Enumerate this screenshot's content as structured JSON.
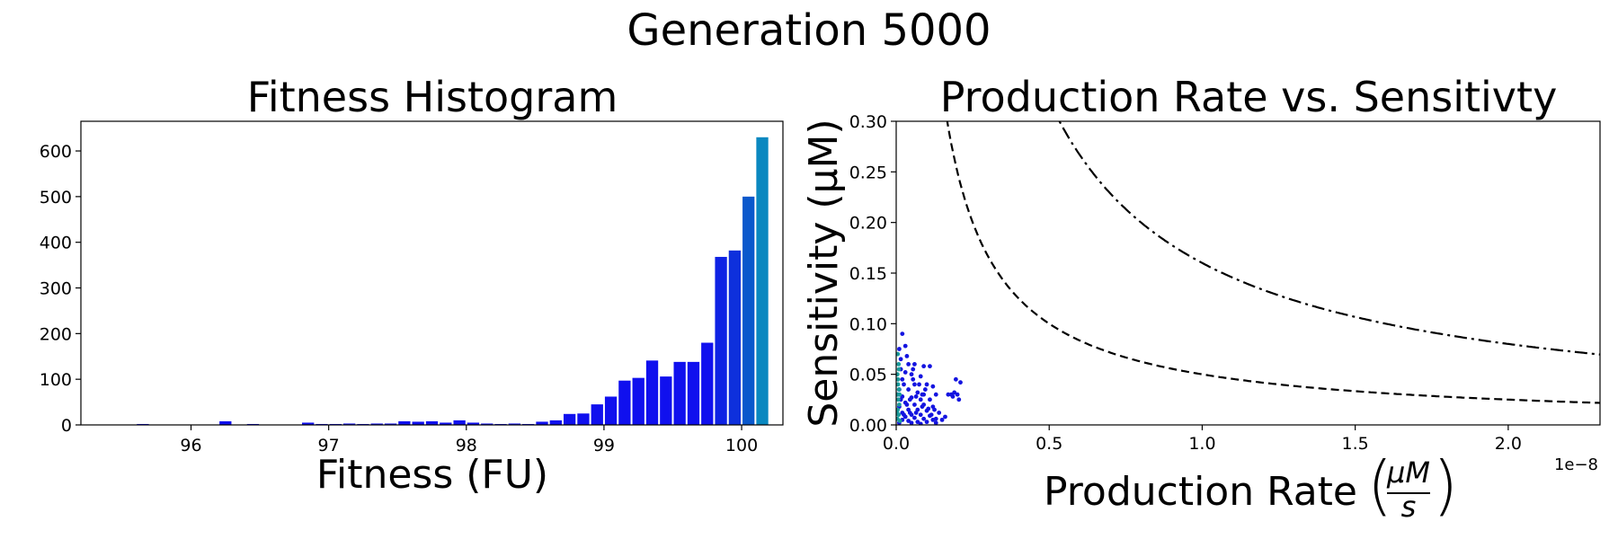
{
  "suptitle": "Generation 5000",
  "chart_data": [
    {
      "type": "bar",
      "title": "Fitness Histogram",
      "xlabel": "Fitness (FU)",
      "ylabel": "",
      "xlim": [
        95.2,
        100.3
      ],
      "ylim": [
        0,
        665
      ],
      "xticks": [
        96,
        97,
        98,
        99,
        100
      ],
      "yticks": [
        0,
        100,
        200,
        300,
        400,
        500,
        600
      ],
      "bin_width": 0.1,
      "bins": [
        {
          "x": 95.65,
          "count": 2,
          "color": "#1010ee"
        },
        {
          "x": 96.25,
          "count": 8,
          "color": "#1010ee"
        },
        {
          "x": 96.45,
          "count": 2,
          "color": "#1010ee"
        },
        {
          "x": 96.85,
          "count": 5,
          "color": "#1010ee"
        },
        {
          "x": 96.95,
          "count": 2,
          "color": "#1010ee"
        },
        {
          "x": 97.05,
          "count": 2,
          "color": "#1010ee"
        },
        {
          "x": 97.15,
          "count": 3,
          "color": "#1010ee"
        },
        {
          "x": 97.25,
          "count": 2,
          "color": "#1010ee"
        },
        {
          "x": 97.35,
          "count": 3,
          "color": "#1010ee"
        },
        {
          "x": 97.45,
          "count": 3,
          "color": "#1010ee"
        },
        {
          "x": 97.55,
          "count": 8,
          "color": "#1010ee"
        },
        {
          "x": 97.65,
          "count": 7,
          "color": "#1010ee"
        },
        {
          "x": 97.75,
          "count": 8,
          "color": "#1010ee"
        },
        {
          "x": 97.85,
          "count": 5,
          "color": "#1010ee"
        },
        {
          "x": 97.95,
          "count": 10,
          "color": "#1010ee"
        },
        {
          "x": 98.05,
          "count": 5,
          "color": "#1010ee"
        },
        {
          "x": 98.15,
          "count": 3,
          "color": "#1010ee"
        },
        {
          "x": 98.25,
          "count": 2,
          "color": "#1010ee"
        },
        {
          "x": 98.35,
          "count": 3,
          "color": "#1010ee"
        },
        {
          "x": 98.45,
          "count": 2,
          "color": "#1010ee"
        },
        {
          "x": 98.55,
          "count": 7,
          "color": "#1010ee"
        },
        {
          "x": 98.65,
          "count": 10,
          "color": "#1010ee"
        },
        {
          "x": 98.75,
          "count": 24,
          "color": "#1010ee"
        },
        {
          "x": 98.85,
          "count": 25,
          "color": "#1010ee"
        },
        {
          "x": 98.95,
          "count": 45,
          "color": "#1010ee"
        },
        {
          "x": 99.05,
          "count": 62,
          "color": "#1010ee"
        },
        {
          "x": 99.15,
          "count": 97,
          "color": "#1010ee"
        },
        {
          "x": 99.25,
          "count": 103,
          "color": "#1010ee"
        },
        {
          "x": 99.35,
          "count": 141,
          "color": "#1010ee"
        },
        {
          "x": 99.45,
          "count": 106,
          "color": "#1010ee"
        },
        {
          "x": 99.55,
          "count": 138,
          "color": "#1010ee"
        },
        {
          "x": 99.65,
          "count": 138,
          "color": "#1010ee"
        },
        {
          "x": 99.75,
          "count": 180,
          "color": "#1010ee"
        },
        {
          "x": 99.85,
          "count": 368,
          "color": "#0e22e4"
        },
        {
          "x": 99.95,
          "count": 382,
          "color": "#0e30dc"
        },
        {
          "x": 100.05,
          "count": 500,
          "color": "#0a58cc"
        },
        {
          "x": 100.15,
          "count": 630,
          "color": "#0a88c0"
        }
      ]
    },
    {
      "type": "scatter",
      "title": "Production Rate vs. Sensitivty",
      "xlabel": "Production Rate",
      "xlabel_unit_numerator": "μM",
      "xlabel_unit_denominator": "s",
      "ylabel": "Sensitivity (μM)",
      "x_offset_label": "1e−8",
      "xlim": [
        0,
        2.3
      ],
      "ylim": [
        0,
        0.3
      ],
      "xticks": [
        "0.0",
        "0.5",
        "1.0",
        "1.5",
        "2.0"
      ],
      "yticks": [
        "0.00",
        "0.05",
        "0.10",
        "0.15",
        "0.20",
        "0.25",
        "0.30"
      ],
      "reference_curves": [
        {
          "style": "dashed",
          "product": 0.05
        },
        {
          "style": "dashdot",
          "product": 0.16
        }
      ],
      "points": [
        [
          0.02,
          0.09
        ],
        [
          0.03,
          0.078
        ],
        [
          0.01,
          0.075
        ],
        [
          0.015,
          0.065
        ],
        [
          0.04,
          0.06
        ],
        [
          0.06,
          0.06
        ],
        [
          0.09,
          0.058
        ],
        [
          0.11,
          0.058
        ],
        [
          0.03,
          0.052
        ],
        [
          0.05,
          0.05
        ],
        [
          0.08,
          0.048
        ],
        [
          0.02,
          0.045
        ],
        [
          0.06,
          0.04
        ],
        [
          0.1,
          0.04
        ],
        [
          0.12,
          0.038
        ],
        [
          0.01,
          0.035
        ],
        [
          0.04,
          0.035
        ],
        [
          0.07,
          0.032
        ],
        [
          0.09,
          0.03
        ],
        [
          0.13,
          0.03
        ],
        [
          0.02,
          0.028
        ],
        [
          0.05,
          0.027
        ],
        [
          0.08,
          0.025
        ],
        [
          0.11,
          0.025
        ],
        [
          0.03,
          0.022
        ],
        [
          0.06,
          0.02
        ],
        [
          0.09,
          0.02
        ],
        [
          0.12,
          0.018
        ],
        [
          0.01,
          0.018
        ],
        [
          0.04,
          0.015
        ],
        [
          0.07,
          0.015
        ],
        [
          0.1,
          0.014
        ],
        [
          0.14,
          0.012
        ],
        [
          0.02,
          0.012
        ],
        [
          0.05,
          0.01
        ],
        [
          0.08,
          0.01
        ],
        [
          0.11,
          0.009
        ],
        [
          0.03,
          0.008
        ],
        [
          0.06,
          0.007
        ],
        [
          0.09,
          0.006
        ],
        [
          0.12,
          0.005
        ],
        [
          0.15,
          0.005
        ],
        [
          0.02,
          0.005
        ],
        [
          0.04,
          0.004
        ],
        [
          0.07,
          0.003
        ],
        [
          0.1,
          0.003
        ],
        [
          0.13,
          0.002
        ],
        [
          0.05,
          0.002
        ],
        [
          0.08,
          0.001
        ],
        [
          0.01,
          0.002
        ],
        [
          0.035,
          0.068
        ],
        [
          0.055,
          0.045
        ],
        [
          0.075,
          0.04
        ],
        [
          0.095,
          0.035
        ],
        [
          0.065,
          0.028
        ],
        [
          0.085,
          0.018
        ],
        [
          0.105,
          0.016
        ],
        [
          0.025,
          0.04
        ],
        [
          0.045,
          0.025
        ],
        [
          0.015,
          0.055
        ],
        [
          0.17,
          0.03
        ],
        [
          0.18,
          0.03
        ],
        [
          0.19,
          0.032
        ],
        [
          0.2,
          0.03
        ],
        [
          0.21,
          0.042
        ],
        [
          0.195,
          0.045
        ],
        [
          0.205,
          0.025
        ],
        [
          0.185,
          0.028
        ],
        [
          0.16,
          0.008
        ],
        [
          0.13,
          0.006
        ],
        [
          0.115,
          0.01
        ],
        [
          0.125,
          0.015
        ],
        [
          0.045,
          0.012
        ],
        [
          0.055,
          0.055
        ],
        [
          0.035,
          0.02
        ],
        [
          0.065,
          0.012
        ],
        [
          0.085,
          0.03
        ],
        [
          0.025,
          0.01
        ],
        [
          0.015,
          0.025
        ],
        [
          0.005,
          0.03
        ]
      ],
      "teal_points": [
        [
          0.005,
          0.07
        ],
        [
          0.008,
          0.06
        ],
        [
          0.004,
          0.05
        ],
        [
          0.006,
          0.04
        ],
        [
          0.009,
          0.035
        ],
        [
          0.003,
          0.03
        ],
        [
          0.007,
          0.025
        ],
        [
          0.01,
          0.02
        ],
        [
          0.005,
          0.015
        ],
        [
          0.008,
          0.01
        ],
        [
          0.004,
          0.006
        ],
        [
          0.012,
          0.004
        ],
        [
          0.006,
          0.045
        ],
        [
          0.011,
          0.03
        ],
        [
          0.009,
          0.055
        ],
        [
          0.003,
          0.012
        ]
      ]
    }
  ]
}
